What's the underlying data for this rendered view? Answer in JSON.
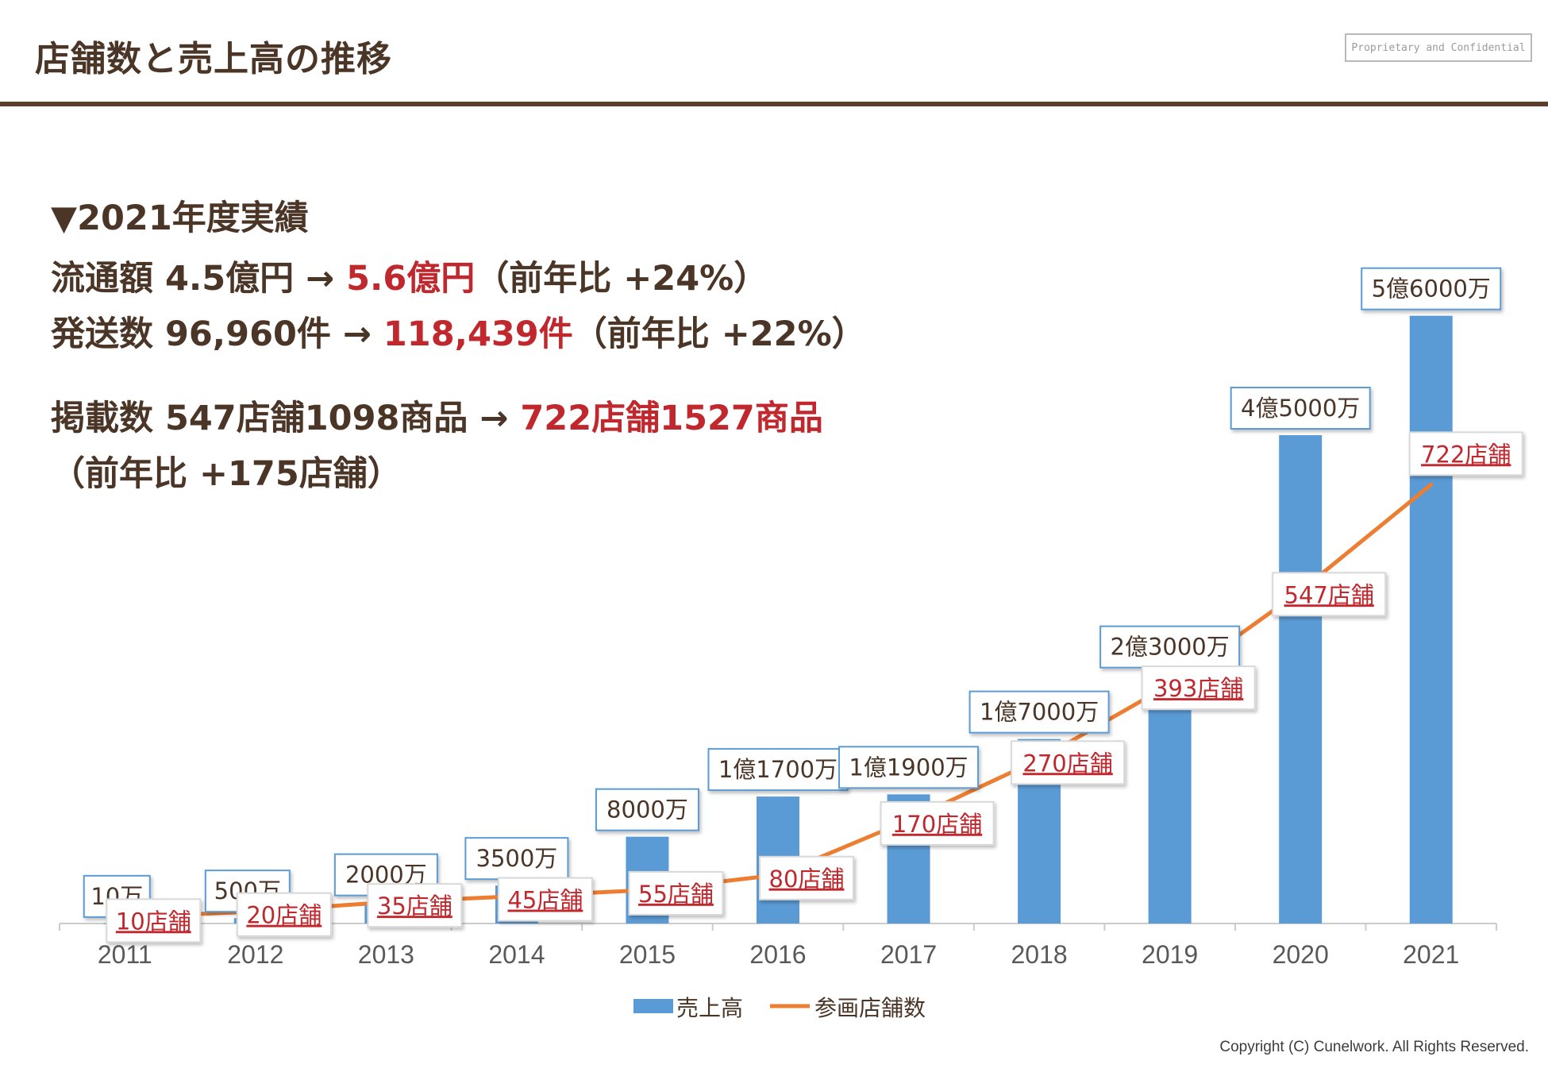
{
  "page": {
    "title": "店舗数と売上高の推移",
    "confidential": "Proprietary and Confidential",
    "copyright": "Copyright (C) Cunelwork. All Rights Reserved."
  },
  "summary": {
    "heading": "▼2021年度実績",
    "line1": {
      "label": "流通額 4.5億円 → ",
      "value": "5.6億円",
      "note": "（前年比 +24%）"
    },
    "line2": {
      "label": "発送数 96,960件 → ",
      "value": "118,439件",
      "note": "（前年比 +22%）"
    },
    "line3": {
      "label": "掲載数 547店舗1098商品 → ",
      "value": "722店舗1527商品"
    },
    "line4": "（前年比 +175店舗）"
  },
  "colors": {
    "bar": "#5b9bd5",
    "line": "#ed7d31",
    "text": "#4a3526",
    "accent": "#c0282e",
    "axis": "#cccccc"
  },
  "chart_data": {
    "type": "bar",
    "title": "",
    "categories": [
      "2011",
      "2012",
      "2013",
      "2014",
      "2015",
      "2016",
      "2017",
      "2018",
      "2019",
      "2020",
      "2021"
    ],
    "series": [
      {
        "name": "売上高",
        "type": "bar",
        "values": [
          100000,
          5000000,
          20000000,
          35000000,
          80000000,
          117000000,
          119000000,
          170000000,
          230000000,
          450000000,
          560000000
        ],
        "labels": [
          "10万",
          "500万",
          "2000万",
          "3500万",
          "8000万",
          "1億1700万",
          "1億1900万",
          "1億7000万",
          "2億3000万",
          "4億5000万",
          "5億6000万"
        ]
      },
      {
        "name": "参画店舗数",
        "type": "line",
        "values": [
          10,
          20,
          35,
          45,
          55,
          80,
          170,
          270,
          393,
          547,
          722
        ],
        "labels": [
          "10店舗",
          "20店舗",
          "35店舗",
          "45店舗",
          "55店舗",
          "80店舗",
          "170店舗",
          "270店舗",
          "393店舗",
          "547店舗",
          "722店舗"
        ]
      }
    ],
    "ylim_bar": [
      0,
      600000000
    ],
    "ylim_line": [
      0,
      1100
    ],
    "legend": "bottom"
  }
}
